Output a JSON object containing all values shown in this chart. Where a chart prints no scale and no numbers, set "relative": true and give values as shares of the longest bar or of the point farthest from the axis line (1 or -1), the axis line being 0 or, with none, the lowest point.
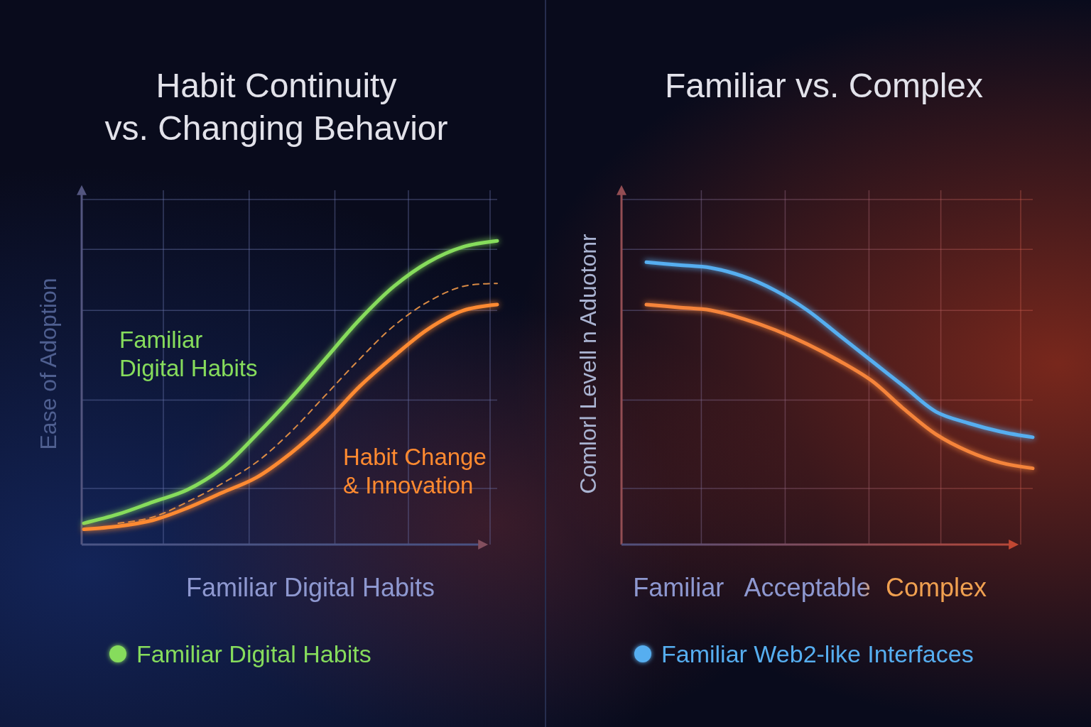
{
  "chart_data": [
    {
      "type": "line",
      "title": "Habit Continuity\nvs. Changing Behavior",
      "xlabel": "Familiar Digital Habits",
      "ylabel": "Ease of Adoption",
      "categories": [
        null,
        null,
        null,
        null,
        null,
        null,
        null,
        null,
        null,
        null,
        null,
        null,
        null
      ],
      "relative": true,
      "grid": true,
      "legend": "bottom",
      "annotations": [
        "Familiar Digital Habits",
        "Habit Change & Innovation"
      ],
      "series": [
        {
          "name": "Familiar Digital Habits",
          "color": "#86dc5c",
          "values": [
            0.07,
            0.1,
            0.14,
            0.18,
            0.25,
            0.36,
            0.48,
            0.61,
            0.74,
            0.85,
            0.93,
            0.98,
            1.0
          ]
        },
        {
          "color": "#d88a45",
          "line_style": "dashed",
          "values": [
            null,
            0.07,
            0.09,
            0.14,
            0.2,
            0.27,
            0.37,
            0.49,
            0.61,
            0.72,
            0.8,
            0.85,
            0.86
          ]
        },
        {
          "color": "#ff8a30",
          "values": [
            0.05,
            0.06,
            0.08,
            0.12,
            0.17,
            0.22,
            0.3,
            0.4,
            0.52,
            0.62,
            0.71,
            0.77,
            0.79
          ]
        }
      ]
    },
    {
      "type": "line",
      "title": "Familiar vs. Complex",
      "ylabel": "Comlorl Levell n Aduotonr",
      "categories": [
        null,
        "Familiar",
        null,
        null,
        null,
        "Acceptable",
        null,
        null,
        null,
        "Complex",
        null,
        null,
        null
      ],
      "relative": true,
      "grid": true,
      "legend": "bottom",
      "series": [
        {
          "name": "Familiar Web2-like Interfaces",
          "color": "#56aef0",
          "values": [
            1.0,
            0.99,
            0.98,
            0.95,
            0.9,
            0.83,
            0.74,
            0.65,
            0.56,
            0.47,
            0.43,
            0.4,
            0.38
          ]
        },
        {
          "color": "#f5843a",
          "values": [
            0.85,
            0.84,
            0.83,
            0.8,
            0.76,
            0.71,
            0.65,
            0.58,
            0.48,
            0.39,
            0.33,
            0.29,
            0.27
          ]
        }
      ]
    }
  ]
}
